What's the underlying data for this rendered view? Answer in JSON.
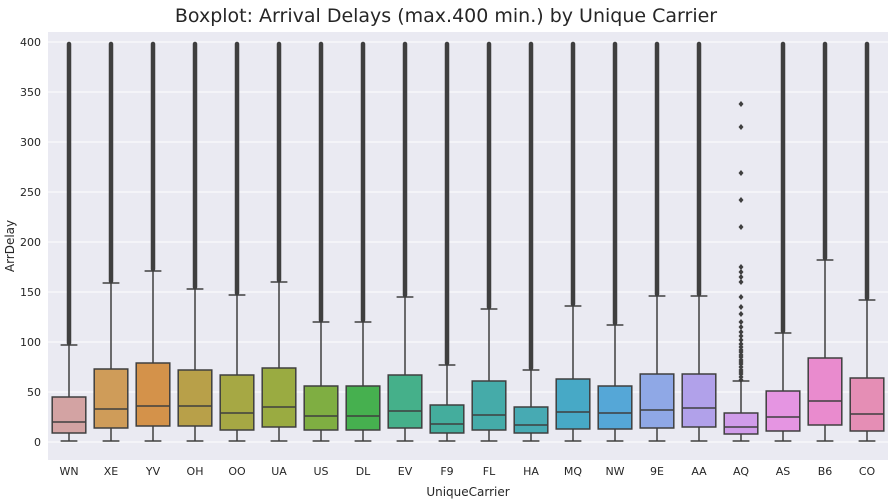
{
  "chart_data": {
    "type": "boxplot",
    "title": "Boxplot: Arrival Delays (max.400 min.) by Unique Carrier",
    "xlabel": "UniqueCarrier",
    "ylabel": "ArrDelay",
    "ylim": [
      -18,
      410
    ],
    "yticks": [
      0,
      50,
      100,
      150,
      200,
      250,
      300,
      350,
      400
    ],
    "grid": true,
    "categories": [
      "WN",
      "XE",
      "YV",
      "OH",
      "OO",
      "UA",
      "US",
      "DL",
      "EV",
      "F9",
      "FL",
      "HA",
      "MQ",
      "NW",
      "9E",
      "AA",
      "AQ",
      "AS",
      "B6",
      "CO"
    ],
    "colors": [
      "#3274a1",
      "#e1812c",
      "#3a923a",
      "#c03d3e",
      "#9372b2",
      "#845b53",
      "#d684bd",
      "#7f7f7f",
      "#a9aa35",
      "#2ebecd",
      "#3274a1",
      "#e1812c",
      "#3a923a",
      "#c03d3e",
      "#9372b2",
      "#845b53",
      "#d684bd",
      "#7f7f7f",
      "#a9aa35",
      "#2ebecd"
    ],
    "box_colors": [
      "#d3a3a3",
      "#cf9c59",
      "#d4924a",
      "#b8a049",
      "#a6a844",
      "#9aab41",
      "#7fae42",
      "#46b04f",
      "#45b08a",
      "#44ad9d",
      "#45aba9",
      "#47aab3",
      "#47a9c6",
      "#55a7d7",
      "#8fa8e6",
      "#b1a1ea",
      "#d09cea",
      "#e595e2",
      "#e98bce",
      "#e58eb5"
    ],
    "boxes": [
      {
        "whislo": 1,
        "q1": 9,
        "med": 20,
        "q3": 45,
        "whishi": 97
      },
      {
        "whislo": 1,
        "q1": 14,
        "med": 33,
        "q3": 73,
        "whishi": 159
      },
      {
        "whislo": 1,
        "q1": 16,
        "med": 36,
        "q3": 79,
        "whishi": 171
      },
      {
        "whislo": 1,
        "q1": 16,
        "med": 36,
        "q3": 72,
        "whishi": 153
      },
      {
        "whislo": 1,
        "q1": 12,
        "med": 29,
        "q3": 67,
        "whishi": 147
      },
      {
        "whislo": 1,
        "q1": 15,
        "med": 35,
        "q3": 74,
        "whishi": 160
      },
      {
        "whislo": 1,
        "q1": 12,
        "med": 26,
        "q3": 56,
        "whishi": 120
      },
      {
        "whislo": 1,
        "q1": 12,
        "med": 26,
        "q3": 56,
        "whishi": 120
      },
      {
        "whislo": 1,
        "q1": 14,
        "med": 31,
        "q3": 67,
        "whishi": 145
      },
      {
        "whislo": 1,
        "q1": 9,
        "med": 18,
        "q3": 37,
        "whishi": 77
      },
      {
        "whislo": 1,
        "q1": 12,
        "med": 27,
        "q3": 61,
        "whishi": 133
      },
      {
        "whislo": 1,
        "q1": 9,
        "med": 17,
        "q3": 35,
        "whishi": 72
      },
      {
        "whislo": 1,
        "q1": 13,
        "med": 30,
        "q3": 63,
        "whishi": 136
      },
      {
        "whislo": 1,
        "q1": 13,
        "med": 29,
        "q3": 56,
        "whishi": 117
      },
      {
        "whislo": 1,
        "q1": 14,
        "med": 32,
        "q3": 68,
        "whishi": 146
      },
      {
        "whislo": 1,
        "q1": 15,
        "med": 34,
        "q3": 68,
        "whishi": 146
      },
      {
        "whislo": 1,
        "q1": 8,
        "med": 15,
        "q3": 29,
        "whishi": 61
      },
      {
        "whislo": 1,
        "q1": 11,
        "med": 25,
        "q3": 51,
        "whishi": 109
      },
      {
        "whislo": 1,
        "q1": 17,
        "med": 41,
        "q3": 84,
        "whishi": 182
      },
      {
        "whislo": 1,
        "q1": 11,
        "med": 28,
        "q3": 64,
        "whishi": 142
      }
    ],
    "outliers_sparse": {
      "AQ": [
        62,
        65,
        68,
        70,
        72,
        75,
        78,
        80,
        82,
        85,
        87,
        90,
        92,
        95,
        98,
        102,
        106,
        110,
        115,
        120,
        128,
        135,
        145,
        160,
        165,
        170,
        175,
        215,
        242,
        269,
        315,
        338
      ],
      "F9_upper": [
        320,
        330,
        340,
        348,
        355,
        362,
        368,
        374,
        380,
        386,
        392,
        396
      ],
      "HA_upper": [
        340,
        352,
        362,
        370,
        378,
        384,
        390,
        395
      ]
    }
  }
}
